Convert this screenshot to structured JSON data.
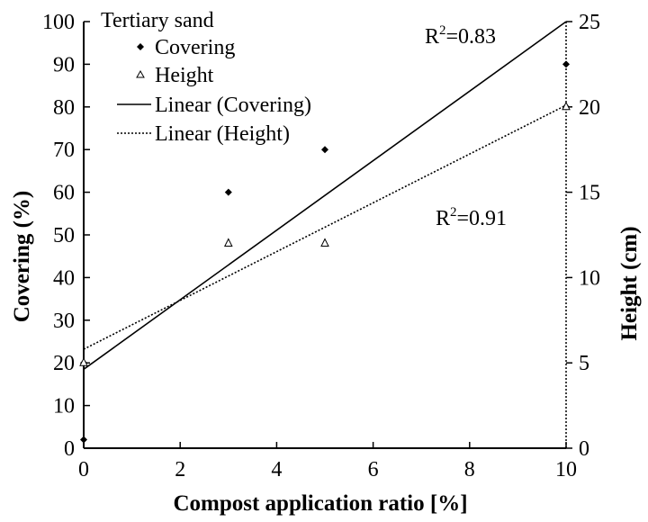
{
  "chart_data": {
    "type": "scatter",
    "title": "",
    "legend_title": "Tertiary sand",
    "xlabel": "Compost application ratio [%]",
    "ylabel_left": "Covering (%)",
    "ylabel_right": "Height (cm)",
    "xlim": [
      0,
      10
    ],
    "ylim_left": [
      0,
      100
    ],
    "ylim_right": [
      0,
      25
    ],
    "x_ticks": [
      0,
      2,
      4,
      6,
      8,
      10
    ],
    "y_left_ticks": [
      0,
      10,
      20,
      30,
      40,
      50,
      60,
      70,
      80,
      90,
      100
    ],
    "y_right_ticks": [
      0,
      5,
      10,
      15,
      20,
      25
    ],
    "grid": false,
    "legend_position": "top-left",
    "series": [
      {
        "name": "Covering",
        "axis": "left",
        "marker": "diamond",
        "x": [
          0,
          0,
          3,
          5,
          10,
          10
        ],
        "y": [
          2,
          20,
          60,
          70,
          90,
          80
        ]
      },
      {
        "name": "Height",
        "axis": "right",
        "marker": "triangle-open",
        "x": [
          0,
          3,
          5,
          10
        ],
        "y": [
          5,
          12,
          12,
          20
        ]
      }
    ],
    "trendlines": [
      {
        "name": "Linear (Covering)",
        "axis": "left",
        "style": "solid",
        "x": [
          0,
          10
        ],
        "y": [
          18.5,
          100
        ],
        "r2_label": "R",
        "r2_sup": "2",
        "r2_value": "=0.83"
      },
      {
        "name": "Linear (Height)",
        "axis": "right",
        "style": "dotted",
        "x": [
          0,
          10
        ],
        "y": [
          5.8,
          20.1
        ],
        "r2_label": "R",
        "r2_sup": "2",
        "r2_value": "=0.91"
      }
    ]
  }
}
